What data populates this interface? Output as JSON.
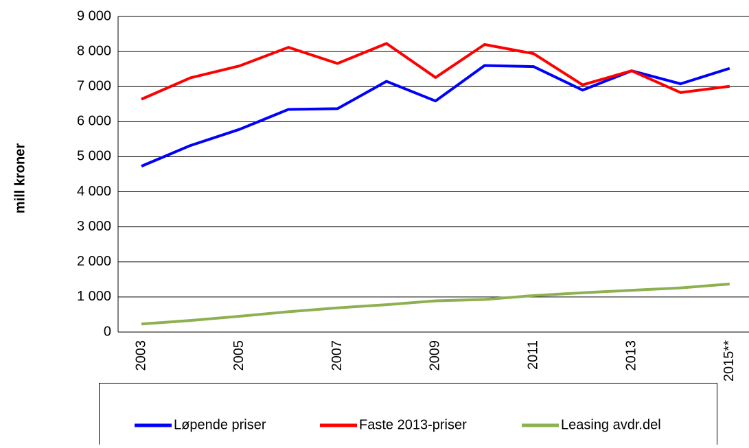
{
  "chart_data": {
    "type": "line",
    "y_label": "mill kroner",
    "categories": [
      "2003",
      null,
      "2005",
      null,
      "2007",
      null,
      "2009",
      null,
      "2011",
      null,
      "2013",
      null,
      "2015**"
    ],
    "series": [
      {
        "name": "Løpende priser",
        "color": "#0000ff",
        "values": [
          4730,
          5320,
          5780,
          6350,
          6370,
          7150,
          6590,
          7600,
          7570,
          6900,
          7450,
          7080,
          7520
        ]
      },
      {
        "name": "Faste 2013-priser",
        "color": "#ff0000",
        "values": [
          6640,
          7250,
          7590,
          8120,
          7660,
          8230,
          7260,
          8200,
          7940,
          7050,
          7450,
          6830,
          7010
        ]
      },
      {
        "name": "Leasing avdr.del",
        "color": "#8db050",
        "values": [
          230,
          330,
          450,
          580,
          690,
          780,
          890,
          930,
          1040,
          1120,
          1190,
          1260,
          1370
        ]
      }
    ],
    "ylim": [
      0,
      9000
    ],
    "yticks": [
      0,
      {
        "value": 1000,
        "label": "1 000"
      },
      {
        "value": 2000,
        "label": "2 000"
      },
      {
        "value": 3000,
        "label": "3 000"
      },
      {
        "value": 4000,
        "label": "4 000"
      },
      {
        "value": 5000,
        "label": "5 000"
      },
      {
        "value": 6000,
        "label": "6 000"
      },
      {
        "value": 7000,
        "label": "7 000"
      },
      {
        "value": 8000,
        "label": "8 000"
      },
      {
        "value": 9000,
        "label": "9 000"
      }
    ],
    "grid": true,
    "legend": "bottom"
  }
}
